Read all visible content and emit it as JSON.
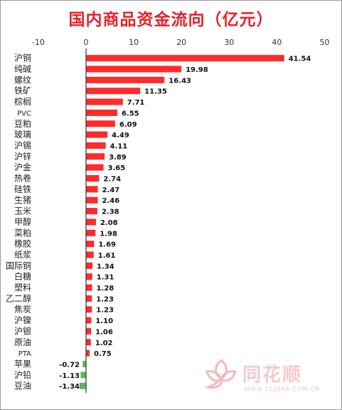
{
  "chart_data": {
    "type": "bar",
    "orientation": "horizontal",
    "title": "国内商品资金流向（亿元）",
    "xlim": [
      -10,
      50
    ],
    "xticks": [
      -10,
      0,
      10,
      20,
      30,
      40,
      50
    ],
    "categories": [
      "沪铜",
      "纯碱",
      "螺纹",
      "铁矿",
      "棕榈",
      "PVC",
      "豆粕",
      "玻璃",
      "沪锡",
      "沪锌",
      "沪金",
      "热卷",
      "硅铁",
      "生猪",
      "玉米",
      "甲醇",
      "菜粕",
      "橡胶",
      "纸浆",
      "国际铜",
      "白糖",
      "塑料",
      "乙二醇",
      "焦炭",
      "沪镍",
      "沪银",
      "原油",
      "PTA",
      "苹果",
      "沪铅",
      "豆油"
    ],
    "values": [
      41.54,
      19.98,
      16.43,
      11.35,
      7.71,
      6.55,
      6.09,
      4.49,
      4.11,
      3.89,
      3.65,
      2.74,
      2.47,
      2.46,
      2.38,
      2.08,
      1.98,
      1.69,
      1.61,
      1.34,
      1.31,
      1.28,
      1.23,
      1.23,
      1.1,
      1.06,
      1.02,
      0.75,
      -0.72,
      -1.13,
      -1.34
    ],
    "labels": [
      "41.54",
      "19.98",
      "16.43",
      "11.35",
      "7.71",
      "6.55",
      "6.09",
      "4.49",
      "4.11",
      "3.89",
      "3.65",
      "2.74",
      "2.47",
      "2.46",
      "2.38",
      "2.08",
      "1.98",
      "1.69",
      "1.61",
      "1.34",
      "1.31",
      "1.28",
      "1.23",
      "1.23",
      "1.10",
      "1.06",
      "1.02",
      "0.75",
      "-0.72",
      "-1.13",
      "-1.34"
    ],
    "colors": {
      "positive": "#ff2a2a",
      "negative": "#5cb85c",
      "title": "#e8202a"
    },
    "grid": false
  },
  "watermark": {
    "brand": "同花顺",
    "url": "WWW.10JQKA.COM.CN"
  }
}
